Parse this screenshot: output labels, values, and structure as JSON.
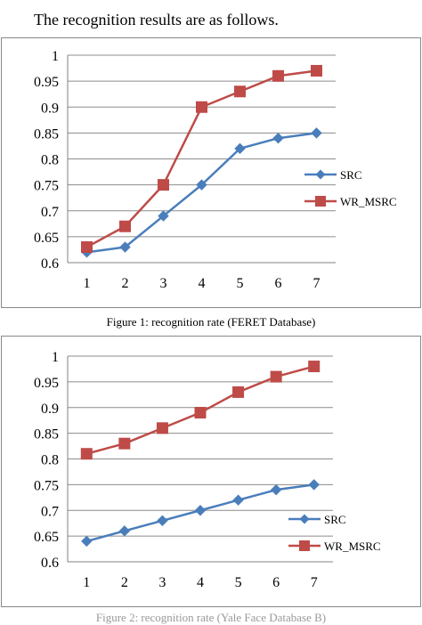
{
  "intro_text": "The recognition results are as follows.",
  "captions": [
    "Figure 1: recognition rate (FERET Database)",
    "Figure 2: recognition rate (Yale Face Database B)"
  ],
  "colors": {
    "src": "#4A7EBB",
    "wr_msrc": "#BE4B48",
    "grid": "#8C8C8C",
    "axis": "#808080"
  },
  "chart_data": [
    {
      "type": "line",
      "title": "",
      "xlabel": "",
      "ylabel": "",
      "categories": [
        "1",
        "2",
        "3",
        "4",
        "5",
        "6",
        "7"
      ],
      "ylim": [
        0.6,
        1
      ],
      "yticks": [
        "0.6",
        "0.65",
        "0.7",
        "0.75",
        "0.8",
        "0.85",
        "0.9",
        "0.95",
        "1"
      ],
      "grid": true,
      "legend": "right",
      "series": [
        {
          "name": "SRC",
          "marker": "diamond",
          "values": [
            0.62,
            0.63,
            0.69,
            0.75,
            0.82,
            0.84,
            0.85
          ]
        },
        {
          "name": "WR_MSRC",
          "marker": "square",
          "values": [
            0.63,
            0.67,
            0.75,
            0.9,
            0.93,
            0.96,
            0.97
          ]
        }
      ]
    },
    {
      "type": "line",
      "title": "",
      "xlabel": "",
      "ylabel": "",
      "categories": [
        "1",
        "2",
        "3",
        "4",
        "5",
        "6",
        "7"
      ],
      "ylim": [
        0.6,
        1
      ],
      "yticks": [
        "0.6",
        "0.65",
        "0.7",
        "0.75",
        "0.8",
        "0.85",
        "0.9",
        "0.95",
        "1"
      ],
      "grid": true,
      "legend": "bottom-right",
      "series": [
        {
          "name": "SRC",
          "marker": "diamond",
          "values": [
            0.64,
            0.66,
            0.68,
            0.7,
            0.72,
            0.74,
            0.75
          ]
        },
        {
          "name": "WR_MSRC",
          "marker": "square",
          "values": [
            0.81,
            0.83,
            0.86,
            0.89,
            0.93,
            0.96,
            0.98
          ]
        }
      ]
    }
  ]
}
